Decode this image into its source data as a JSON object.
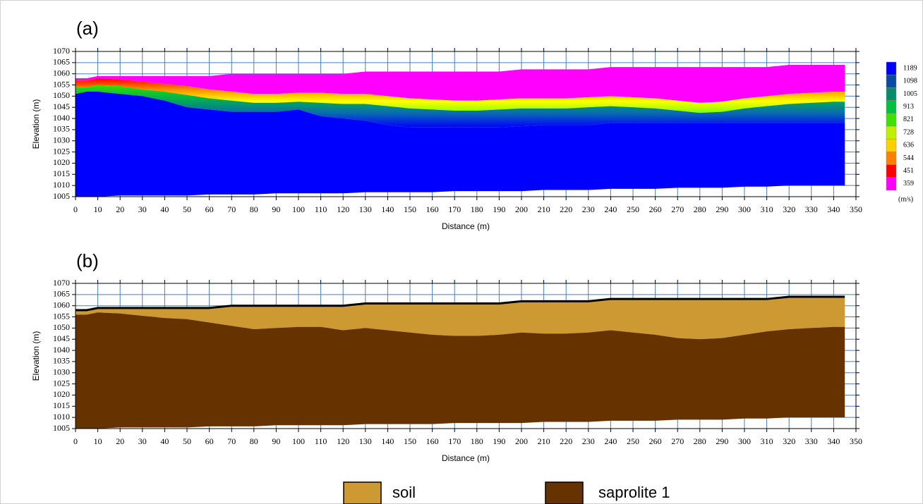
{
  "chart_data": [
    {
      "type": "tomogram",
      "label": "(a)",
      "x": [
        0,
        5,
        10,
        20,
        30,
        40,
        50,
        60,
        70,
        80,
        90,
        100,
        110,
        120,
        130,
        140,
        150,
        160,
        170,
        180,
        190,
        200,
        210,
        220,
        230,
        240,
        250,
        260,
        270,
        280,
        290,
        300,
        310,
        320,
        330,
        340,
        345
      ],
      "series": [
        {
          "color": "#ff00ff",
          "values": [
            1058,
            1058,
            1059,
            1059,
            1059,
            1059,
            1059,
            1059,
            1060,
            1060,
            1060,
            1060,
            1060,
            1060,
            1061,
            1061,
            1061,
            1061,
            1061,
            1061,
            1061,
            1062,
            1062,
            1062,
            1062,
            1063,
            1063,
            1063,
            1063,
            1063,
            1063,
            1063,
            1063,
            1064,
            1064,
            1064,
            1064
          ]
        },
        {
          "colors": [
            "#ff0000",
            "#ff9000",
            "#ffff00",
            "#80ff00"
          ],
          "values": [
            1057,
            1057,
            1058,
            1057.5,
            1056.5,
            1055.5,
            1054.5,
            1053,
            1052,
            1051,
            1051,
            1051.5,
            1051.5,
            1051,
            1051,
            1050,
            1049,
            1048.5,
            1048,
            1048,
            1048.5,
            1049,
            1049,
            1049,
            1049.5,
            1050,
            1049.5,
            1049,
            1048,
            1047,
            1047.5,
            1049,
            1050,
            1051,
            1051.5,
            1052,
            1052
          ]
        },
        {
          "colors": [
            "#30e000",
            "#00b050",
            "#0a6ab0",
            "#0000ff"
          ],
          "values": [
            1054,
            1054,
            1055,
            1054.5,
            1053,
            1052,
            1050.5,
            1049,
            1048,
            1047,
            1047,
            1047.5,
            1047,
            1046.5,
            1046.5,
            1045.5,
            1044.5,
            1044,
            1043.5,
            1043.5,
            1044,
            1044.5,
            1044.5,
            1044.5,
            1045,
            1045.5,
            1045,
            1044.5,
            1043.5,
            1042.5,
            1043,
            1044.5,
            1045.5,
            1046.5,
            1047,
            1047.5,
            1047.5
          ]
        },
        {
          "color": "#0000ff",
          "values": [
            1051,
            1052,
            1052,
            1051,
            1050,
            1048,
            1045,
            1044,
            1043,
            1043,
            1043,
            1044,
            1041,
            1040,
            1039,
            1037,
            1036,
            1036,
            1036,
            1036,
            1036,
            1036.5,
            1037,
            1037,
            1037,
            1038,
            1038,
            1038,
            1038,
            1038,
            1038,
            1038,
            1038,
            1038,
            1038,
            1038,
            1038
          ]
        }
      ],
      "base": [
        1005,
        1005,
        1005,
        1005.5,
        1005.5,
        1005.5,
        1005.5,
        1006,
        1006,
        1006,
        1006.5,
        1006.5,
        1006.5,
        1006.5,
        1007,
        1007,
        1007,
        1007,
        1007.5,
        1007.5,
        1007.5,
        1007.5,
        1008,
        1008,
        1008,
        1008.5,
        1008.5,
        1008.5,
        1009,
        1009,
        1009,
        1009.5,
        1009.5,
        1010,
        1010,
        1010,
        1010
      ],
      "xlabel": "Distance (m)",
      "ylabel": "Elevation (m)",
      "xlim": [
        0,
        350
      ],
      "xticks": [
        0,
        10,
        20,
        30,
        40,
        50,
        60,
        70,
        80,
        90,
        100,
        110,
        120,
        130,
        140,
        150,
        160,
        170,
        180,
        190,
        200,
        210,
        220,
        230,
        240,
        250,
        260,
        270,
        280,
        290,
        300,
        310,
        320,
        330,
        340,
        350
      ],
      "ylim": [
        1005,
        1070
      ],
      "yticks": [
        1005,
        1010,
        1015,
        1020,
        1025,
        1030,
        1035,
        1040,
        1045,
        1050,
        1055,
        1060,
        1065,
        1070
      ],
      "grid": true,
      "grid_color": "#4a7ebb",
      "colorbar": {
        "ticks": [
          1189,
          1098,
          1005,
          913,
          821,
          728,
          636,
          544,
          451,
          359
        ],
        "colors": [
          "#0000ff",
          "#0a4aa0",
          "#0a8a6a",
          "#00c040",
          "#40e000",
          "#c0f000",
          "#ffd000",
          "#ff8000",
          "#ff0000",
          "#ff00ff"
        ],
        "unit": "(m/s)"
      }
    },
    {
      "type": "area",
      "label": "(b)",
      "x": [
        0,
        5,
        10,
        20,
        30,
        40,
        50,
        60,
        70,
        80,
        90,
        100,
        110,
        120,
        130,
        140,
        150,
        160,
        170,
        180,
        190,
        200,
        210,
        220,
        230,
        240,
        250,
        260,
        270,
        280,
        290,
        300,
        310,
        320,
        330,
        340,
        345
      ],
      "series": [
        {
          "name": "soil",
          "color": "#cc9933",
          "values": [
            1058,
            1058,
            1059,
            1059,
            1059,
            1059,
            1059,
            1059,
            1060,
            1060,
            1060,
            1060,
            1060,
            1060,
            1061,
            1061,
            1061,
            1061,
            1061,
            1061,
            1061,
            1062,
            1062,
            1062,
            1062,
            1063,
            1063,
            1063,
            1063,
            1063,
            1063,
            1063,
            1063,
            1064,
            1064,
            1064,
            1064
          ]
        },
        {
          "name": "saprolite 1",
          "color": "#663300",
          "values": [
            1056,
            1056,
            1057,
            1056.5,
            1055.5,
            1054.5,
            1054,
            1052.5,
            1051,
            1049.5,
            1050,
            1050.5,
            1050.5,
            1049,
            1050,
            1049,
            1048,
            1047,
            1046.5,
            1046.5,
            1047,
            1048,
            1047.5,
            1047.5,
            1048,
            1049,
            1048,
            1047,
            1045.5,
            1045,
            1045.5,
            1047,
            1048.5,
            1049.5,
            1050,
            1050.5,
            1050.5
          ]
        }
      ],
      "base": [
        1005,
        1005,
        1005,
        1005.5,
        1005.5,
        1005.5,
        1005.5,
        1006,
        1006,
        1006,
        1006.5,
        1006.5,
        1006.5,
        1006.5,
        1007,
        1007,
        1007,
        1007,
        1007.5,
        1007.5,
        1007.5,
        1007.5,
        1008,
        1008,
        1008,
        1008.5,
        1008.5,
        1008.5,
        1009,
        1009,
        1009,
        1009.5,
        1009.5,
        1010,
        1010,
        1010,
        1010
      ],
      "outline": "#000000",
      "xlabel": "Distance (m)",
      "ylabel": "Elevation (m)",
      "xlim": [
        0,
        350
      ],
      "xticks": [
        0,
        10,
        20,
        30,
        40,
        50,
        60,
        70,
        80,
        90,
        100,
        110,
        120,
        130,
        140,
        150,
        160,
        170,
        180,
        190,
        200,
        210,
        220,
        230,
        240,
        250,
        260,
        270,
        280,
        290,
        300,
        310,
        320,
        330,
        340,
        350
      ],
      "ylim": [
        1005,
        1070
      ],
      "yticks": [
        1005,
        1010,
        1015,
        1020,
        1025,
        1030,
        1035,
        1040,
        1045,
        1050,
        1055,
        1060,
        1065,
        1070
      ],
      "grid": true,
      "grid_color": "#4a7ebb"
    }
  ]
}
